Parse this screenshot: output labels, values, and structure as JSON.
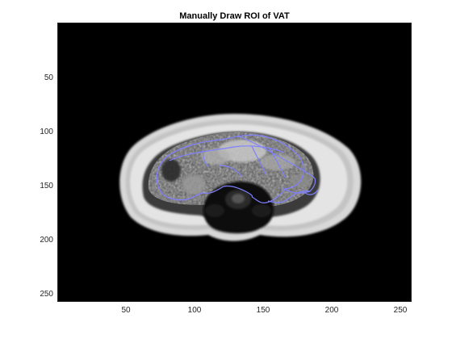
{
  "figure": {
    "title": "Manually Draw ROI of VAT"
  },
  "axes": {
    "xlim": [
      0.5,
      256.5
    ],
    "ylim": [
      0.5,
      256.5
    ],
    "y_direction": "reversed",
    "x_ticks": [
      {
        "value": 50,
        "label": "50"
      },
      {
        "value": 100,
        "label": "100"
      },
      {
        "value": 150,
        "label": "150"
      },
      {
        "value": 200,
        "label": "200"
      },
      {
        "value": 250,
        "label": "250"
      }
    ],
    "y_ticks": [
      {
        "value": 50,
        "label": "50"
      },
      {
        "value": 100,
        "label": "100"
      },
      {
        "value": 150,
        "label": "150"
      },
      {
        "value": 200,
        "label": "200"
      },
      {
        "value": 250,
        "label": "250"
      }
    ]
  },
  "image": {
    "type": "grayscale MRI axial abdominal slice",
    "roi_color": "#8080ff",
    "background_color": "#000000"
  }
}
